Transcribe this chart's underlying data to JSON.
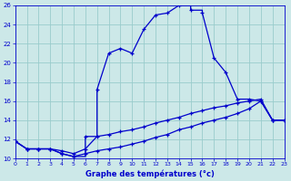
{
  "title": "Graphe des températures (°c)",
  "bg_color": "#cce8e8",
  "grid_color": "#99cccc",
  "line_color": "#0000cc",
  "x_min": 0,
  "x_max": 23,
  "y_min": 10,
  "y_max": 26,
  "line1_x": [
    0,
    1,
    2,
    3,
    4,
    5,
    6,
    6,
    7,
    7,
    8,
    9,
    10,
    11,
    12,
    13,
    14,
    15,
    15,
    16,
    16,
    17,
    18,
    19,
    20,
    21,
    22,
    23
  ],
  "line1_y": [
    11.8,
    11.0,
    11.0,
    11.0,
    10.5,
    10.2,
    10.2,
    12.3,
    12.3,
    17.2,
    21.0,
    21.5,
    21.0,
    23.5,
    25.0,
    25.2,
    26.0,
    26.0,
    25.5,
    25.5,
    25.2,
    20.5,
    19.0,
    16.2,
    16.2,
    16.0,
    14.0,
    14.0
  ],
  "line1_markers_x": [
    0,
    1,
    2,
    3,
    4,
    5,
    6,
    7,
    8,
    9,
    10,
    11,
    12,
    13,
    14,
    15,
    16,
    17,
    18,
    19,
    20,
    21,
    22,
    23
  ],
  "line1_markers_y": [
    11.8,
    11.0,
    11.0,
    11.0,
    10.5,
    10.2,
    12.3,
    17.2,
    21.0,
    21.5,
    21.0,
    23.5,
    25.0,
    25.2,
    26.0,
    25.5,
    25.2,
    20.5,
    19.0,
    16.2,
    16.2,
    16.0,
    14.0,
    14.0
  ],
  "line2_x": [
    0,
    1,
    2,
    3,
    4,
    5,
    6,
    7,
    8,
    9,
    10,
    11,
    12,
    13,
    14,
    15,
    16,
    17,
    18,
    19,
    20,
    21,
    22,
    23
  ],
  "line2_y": [
    11.8,
    11.0,
    11.0,
    11.0,
    10.5,
    10.2,
    10.5,
    10.8,
    11.0,
    11.2,
    11.5,
    11.8,
    12.2,
    12.5,
    13.0,
    13.3,
    13.7,
    14.0,
    14.3,
    14.7,
    15.2,
    16.0,
    14.0,
    14.0
  ],
  "line3_x": [
    0,
    1,
    2,
    3,
    4,
    5,
    6,
    7,
    8,
    9,
    10,
    11,
    12,
    13,
    14,
    15,
    16,
    17,
    18,
    19,
    20,
    21,
    22,
    23
  ],
  "line3_y": [
    11.8,
    11.0,
    11.0,
    11.0,
    10.8,
    10.5,
    11.0,
    12.3,
    12.5,
    12.8,
    13.0,
    13.3,
    13.7,
    14.0,
    14.3,
    14.7,
    15.0,
    15.3,
    15.5,
    15.8,
    16.0,
    16.2,
    14.0,
    14.0
  ]
}
